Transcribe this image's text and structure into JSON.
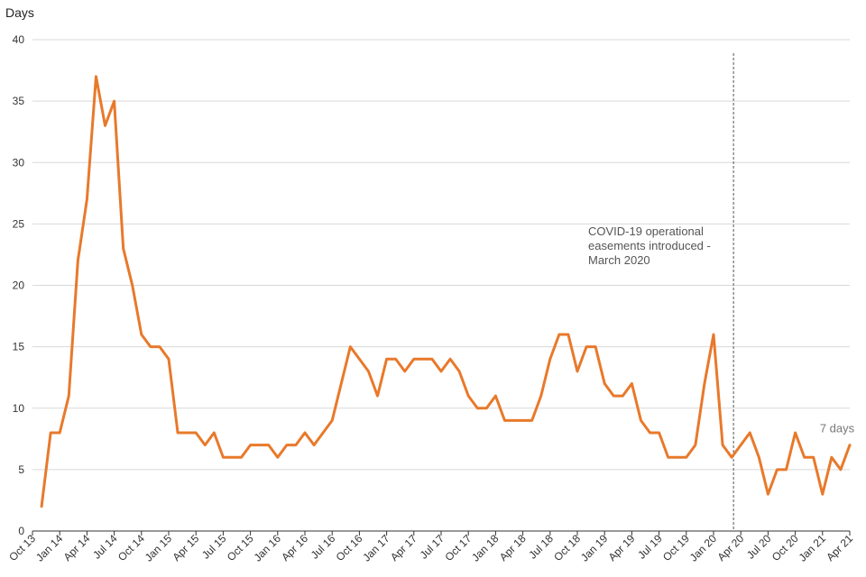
{
  "chart_data": {
    "type": "line",
    "ylabel": "Days",
    "ylim": [
      0,
      40
    ],
    "yticks": [
      0,
      5,
      10,
      15,
      20,
      25,
      30,
      35,
      40
    ],
    "xlim": [
      "2013-10",
      "2021-04"
    ],
    "xtick_labels": [
      "Oct 13",
      "Jan 14",
      "Apr 14",
      "Jul 14",
      "Oct 14",
      "Jan 15",
      "Apr 15",
      "Jul 15",
      "Oct 15",
      "Jan 16",
      "Apr 16",
      "Jul 16",
      "Oct 16",
      "Jan 17",
      "Apr 17",
      "Jul 17",
      "Oct 17",
      "Jan 18",
      "Apr 18",
      "Jul 18",
      "Oct 18",
      "Jan 19",
      "Apr 19",
      "Jul 19",
      "Oct 19",
      "Jan 20",
      "Apr 20",
      "Jul 20",
      "Oct 20",
      "Jan 21",
      "Apr 21"
    ],
    "grid": "horizontal",
    "legend": "none",
    "colors": {
      "line": "#e8792b",
      "grid": "#d9d9d9",
      "marker_line": "#555555"
    },
    "series": [
      {
        "x": [
          "2013-11",
          "2013-12",
          "2014-01",
          "2014-02",
          "2014-03",
          "2014-04",
          "2014-05",
          "2014-06",
          "2014-07",
          "2014-08",
          "2014-09",
          "2014-10",
          "2014-11",
          "2014-12",
          "2015-01",
          "2015-02",
          "2015-03",
          "2015-04",
          "2015-05",
          "2015-06",
          "2015-07",
          "2015-08",
          "2015-09",
          "2015-10",
          "2015-11",
          "2015-12",
          "2016-01",
          "2016-02",
          "2016-03",
          "2016-04",
          "2016-05",
          "2016-06",
          "2016-07",
          "2016-08",
          "2016-09",
          "2016-10",
          "2016-11",
          "2016-12",
          "2017-01",
          "2017-02",
          "2017-03",
          "2017-04",
          "2017-05",
          "2017-06",
          "2017-07",
          "2017-08",
          "2017-09",
          "2017-10",
          "2017-11",
          "2017-12",
          "2018-01",
          "2018-02",
          "2018-03",
          "2018-04",
          "2018-05",
          "2018-06",
          "2018-07",
          "2018-08",
          "2018-09",
          "2018-10",
          "2018-11",
          "2018-12",
          "2019-01",
          "2019-02",
          "2019-03",
          "2019-04",
          "2019-05",
          "2019-06",
          "2019-07",
          "2019-08",
          "2019-09",
          "2019-10",
          "2019-11",
          "2019-12",
          "2020-01",
          "2020-02",
          "2020-03",
          "2020-04",
          "2020-05",
          "2020-06",
          "2020-07",
          "2020-08",
          "2020-09",
          "2020-10",
          "2020-11",
          "2020-12",
          "2021-01",
          "2021-02",
          "2021-03",
          "2021-04"
        ],
        "values": [
          2,
          8,
          8,
          11,
          22,
          27,
          37,
          33,
          35,
          23,
          20,
          16,
          15,
          15,
          14,
          8,
          8,
          8,
          7,
          8,
          6,
          6,
          6,
          7,
          7,
          7,
          6,
          7,
          7,
          8,
          7,
          8,
          9,
          12,
          15,
          14,
          13,
          11,
          14,
          14,
          13,
          14,
          14,
          14,
          13,
          14,
          13,
          11,
          10,
          10,
          11,
          9,
          9,
          9,
          9,
          11,
          14,
          16,
          16,
          13,
          15,
          15,
          12,
          11,
          11,
          12,
          9,
          8,
          8,
          6,
          6,
          6,
          7,
          12,
          16,
          7,
          6,
          7,
          8,
          6,
          3,
          5,
          5,
          8,
          6,
          6,
          3,
          6,
          5,
          7
        ]
      }
    ],
    "annotations": [
      {
        "x": "2020-03",
        "text_lines": [
          "COVID-19 operational",
          "easements introduced -",
          "March 2020"
        ]
      },
      {
        "x": "2021-04",
        "text": "7 days"
      }
    ]
  }
}
